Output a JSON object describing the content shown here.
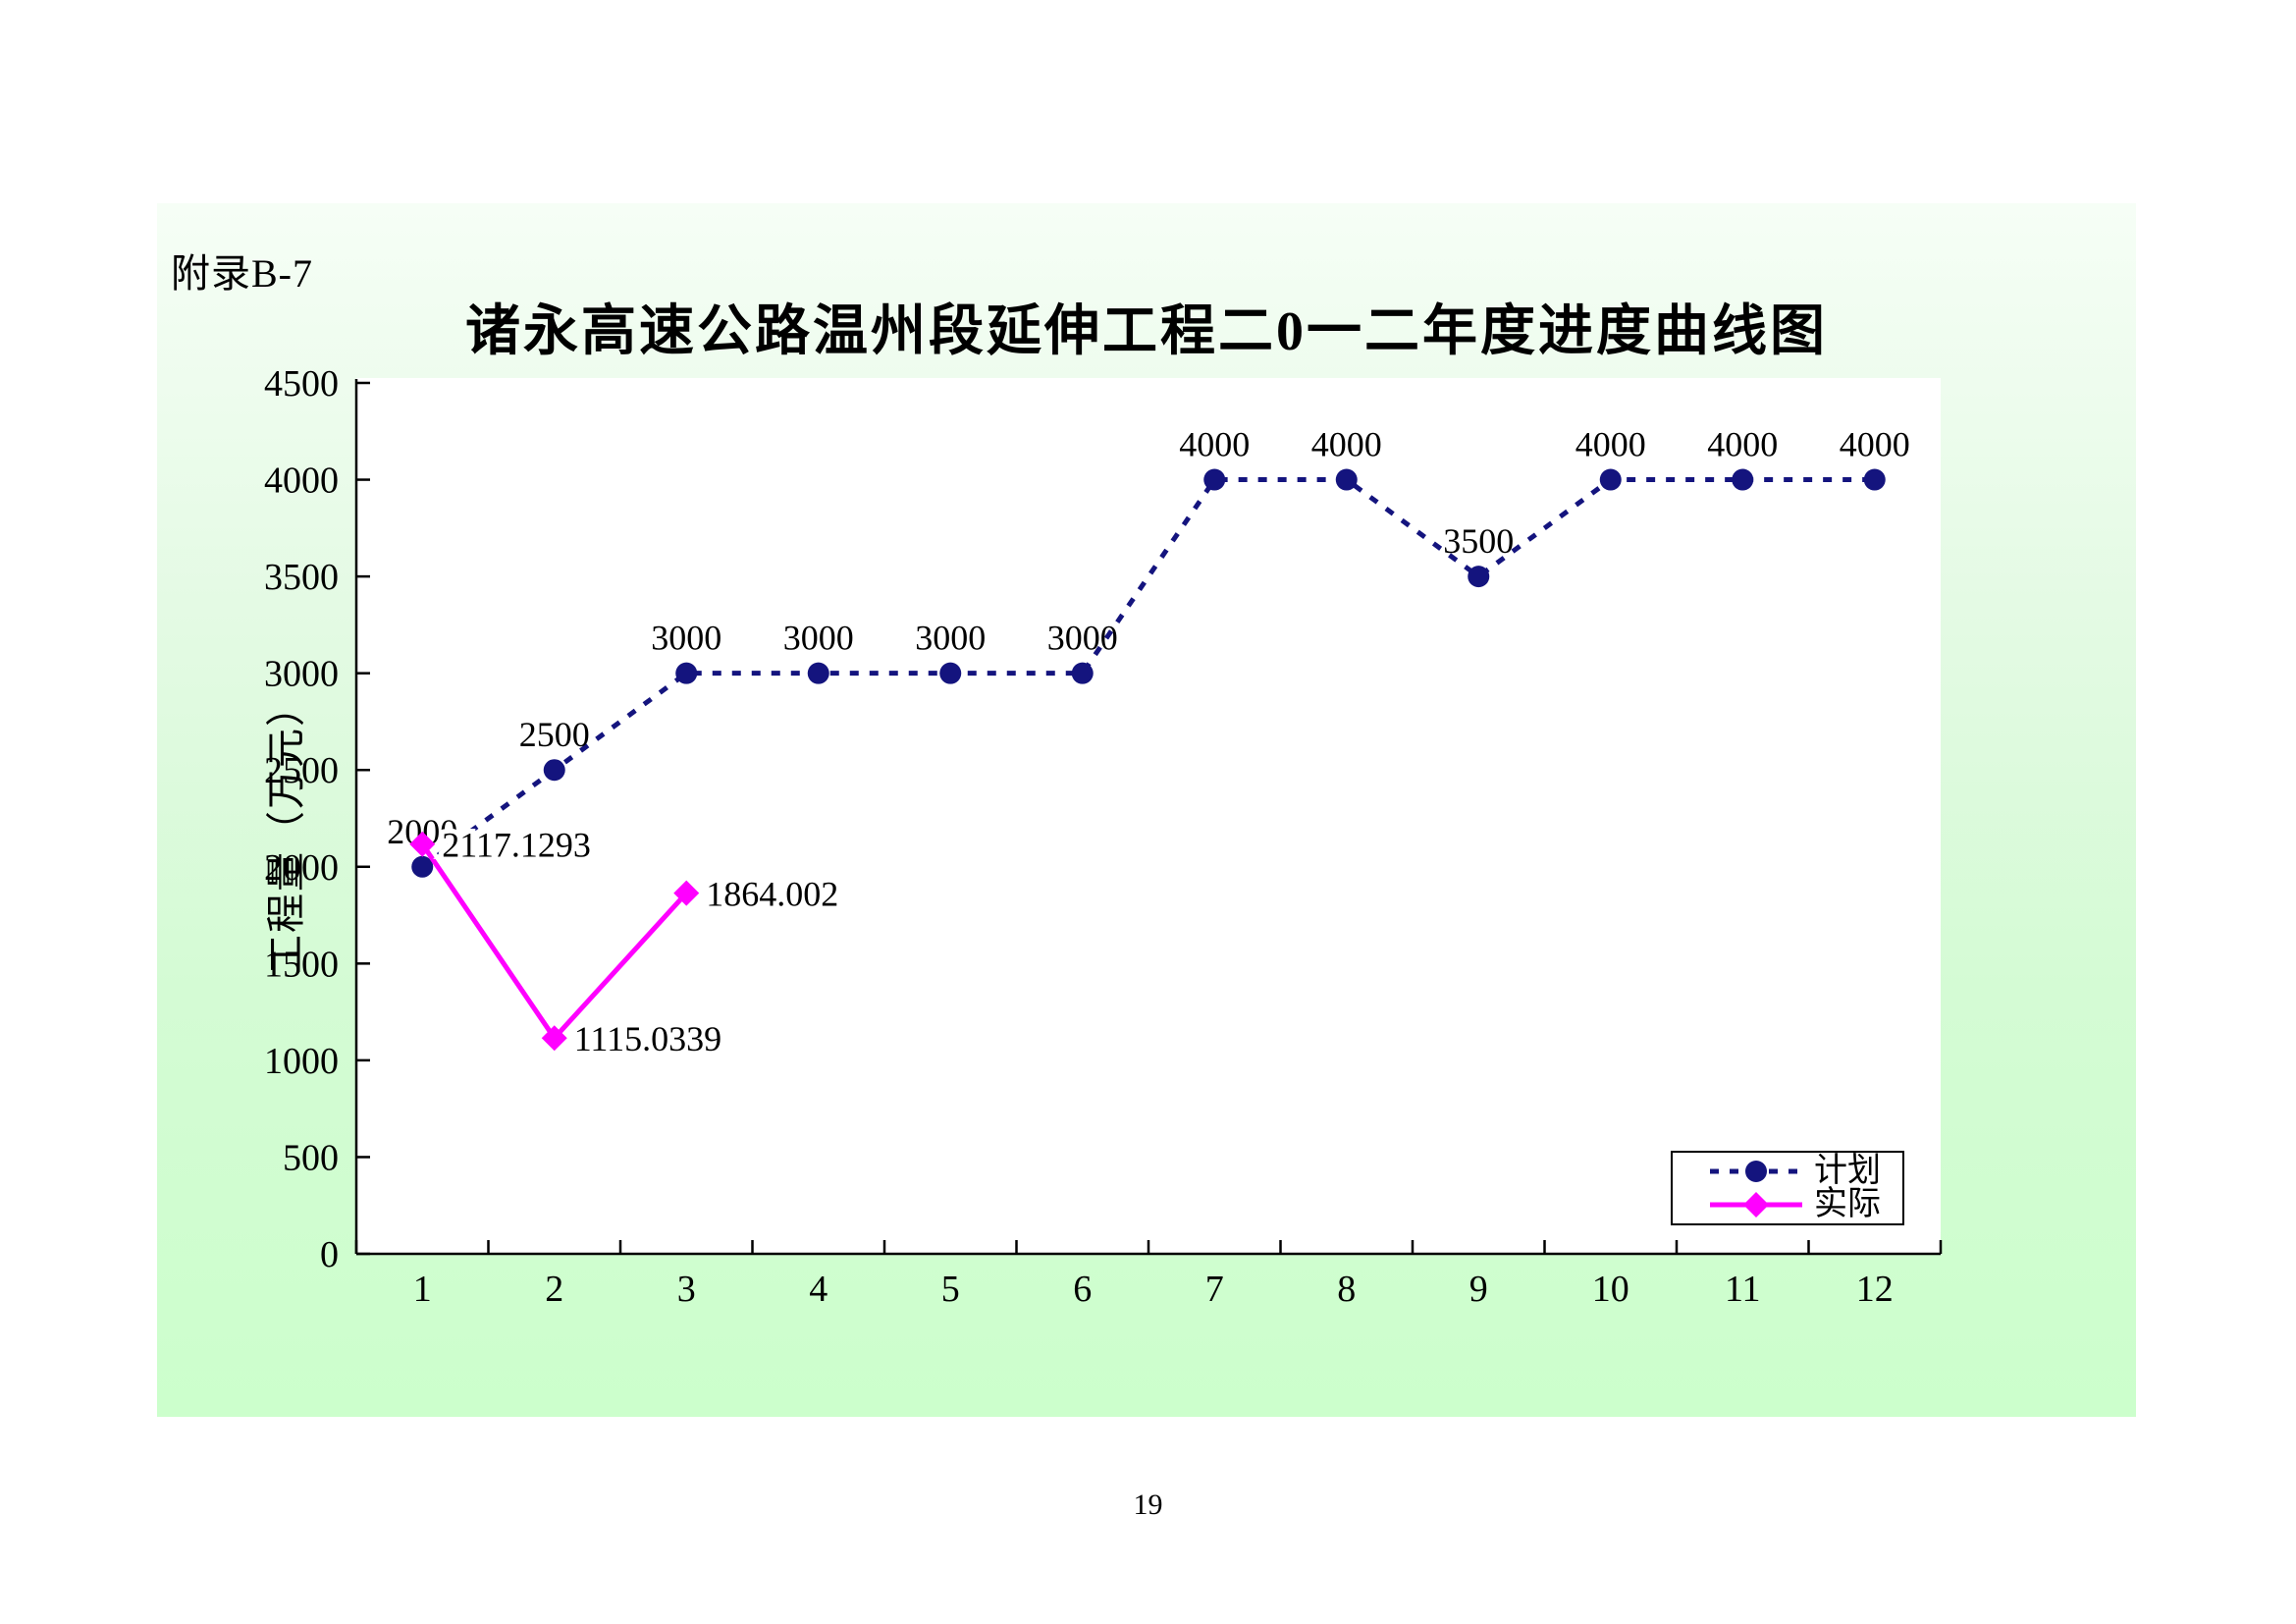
{
  "page": {
    "appendix_label": "附录B-7",
    "page_number": "19"
  },
  "chart_data": {
    "type": "line",
    "title": "诸永高速公路温州段延伸工程二0一二年度进度曲线图",
    "xlabel": "",
    "ylabel": "工程量（万元）",
    "categories": [
      "1",
      "2",
      "3",
      "4",
      "5",
      "6",
      "7",
      "8",
      "9",
      "10",
      "11",
      "12"
    ],
    "ylim": [
      0,
      4500
    ],
    "ytick_step": 500,
    "grid": false,
    "plot_background": "#ffffff",
    "outer_background_top": "#f6fef6",
    "outer_background_bottom": "#ccffcc",
    "legend_position": "inside-bottom-right",
    "series": [
      {
        "name": "计划",
        "color": "#14147E",
        "line_style": "dotted",
        "marker": "circle",
        "values": [
          2000,
          2500,
          3000,
          3000,
          3000,
          3000,
          4000,
          4000,
          3500,
          4000,
          4000,
          4000
        ],
        "labels": [
          "2000",
          "2500",
          "3000",
          "3000",
          "3000",
          "3000",
          "4000",
          "4000",
          "3500",
          "4000",
          "4000",
          "4000"
        ],
        "label_position": "above"
      },
      {
        "name": "实际",
        "color": "#FF00FF",
        "line_style": "solid",
        "marker": "diamond",
        "values": [
          2117.1293,
          1115.0339,
          1864.002
        ],
        "labels": [
          "2117.1293",
          "1115.0339",
          "1864.002"
        ],
        "label_position": "right"
      }
    ]
  }
}
